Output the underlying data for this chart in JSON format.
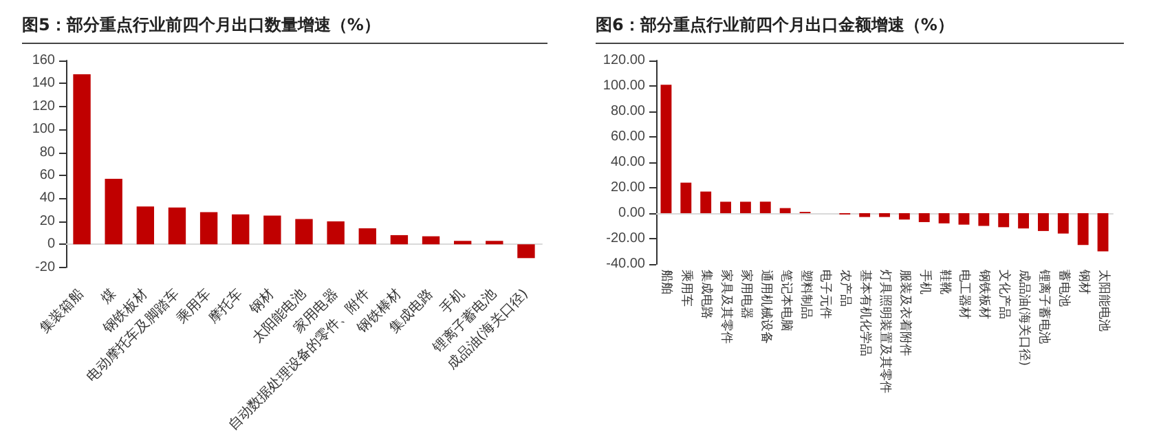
{
  "chart_data": [
    {
      "type": "bar",
      "title": "图5：部分重点行业前四个月出口数量增速（%）",
      "categories": [
        "集装箱船",
        "煤",
        "钢铁板材",
        "电动摩托车及脚踏车",
        "乘用车",
        "摩托车",
        "钢材",
        "太阳能电池",
        "家用电器",
        "自动数据处理设备的零件、附件",
        "钢铁棒材",
        "集成电路",
        "手机",
        "锂离子蓄电池",
        "成品油(海关口径)"
      ],
      "values": [
        148,
        57,
        33,
        32,
        28,
        26,
        25,
        22,
        20,
        14,
        8,
        7,
        3,
        3,
        -12
      ],
      "color": "#c00000",
      "ylim": [
        -20,
        160
      ],
      "yticks": [
        -20,
        0,
        20,
        40,
        60,
        80,
        100,
        120,
        140,
        160
      ]
    },
    {
      "type": "bar",
      "title": "图6：部分重点行业前四个月出口金额增速（%）",
      "categories": [
        "船舶",
        "乘用车",
        "集成电路",
        "家具及其零件",
        "家用电器",
        "通用机械设备",
        "笔记本电脑",
        "塑料制品",
        "电子元件",
        "农产品",
        "基本有机化学品",
        "灯具照明装置及其零件",
        "服装及衣着附件",
        "手机",
        "鞋靴",
        "电工器材",
        "钢铁板材",
        "文化产品",
        "成品油(海关口径)",
        "锂离子蓄电池",
        "蓄电池",
        "钢材",
        "太阳能电池"
      ],
      "values": [
        101,
        24,
        17,
        9,
        9,
        9,
        4,
        1,
        0,
        -1,
        -3,
        -3,
        -5,
        -7,
        -8,
        -9,
        -10,
        -11,
        -12,
        -14,
        -16,
        -25,
        -30
      ],
      "color": "#c00000",
      "ylim": [
        -40,
        120
      ],
      "yticks": [
        {
          "value": -40,
          "label": "-40.00"
        },
        {
          "value": -20,
          "label": "-20.00"
        },
        {
          "value": 0,
          "label": "0.00"
        },
        {
          "value": 20,
          "label": "20.00"
        },
        {
          "value": 40,
          "label": "40.00"
        },
        {
          "value": 60,
          "label": "60.00"
        },
        {
          "value": 80,
          "label": "80.00"
        },
        {
          "value": 100,
          "label": "100.00"
        },
        {
          "value": 120,
          "label": "120.00"
        }
      ]
    }
  ]
}
